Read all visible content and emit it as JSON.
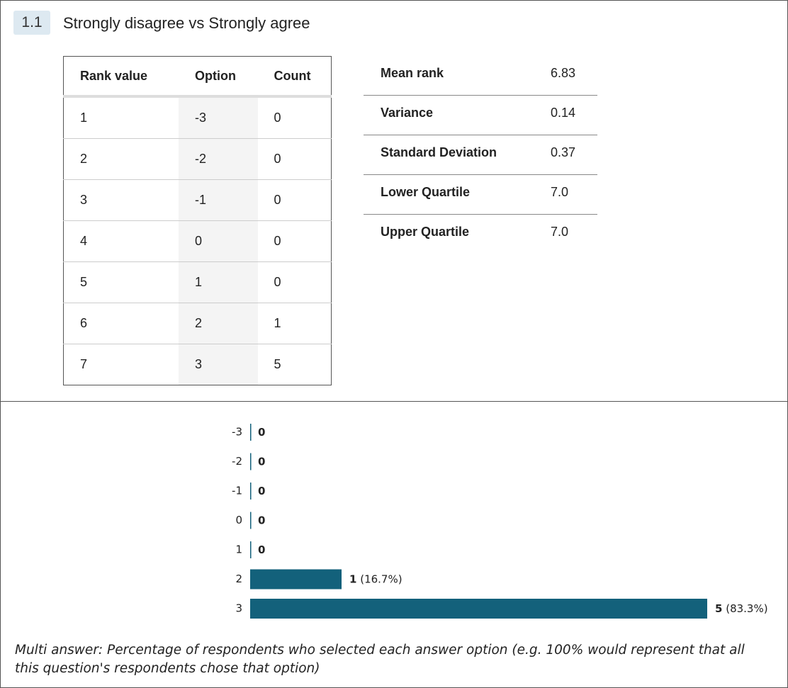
{
  "header": {
    "number": "1.1",
    "title": "Strongly disagree vs Strongly agree"
  },
  "table": {
    "columns": [
      "Rank value",
      "Option",
      "Count"
    ],
    "rows": [
      [
        "1",
        "-3",
        "0"
      ],
      [
        "2",
        "-2",
        "0"
      ],
      [
        "3",
        "-1",
        "0"
      ],
      [
        "4",
        "0",
        "0"
      ],
      [
        "5",
        "1",
        "0"
      ],
      [
        "6",
        "2",
        "1"
      ],
      [
        "7",
        "3",
        "5"
      ]
    ]
  },
  "stats": [
    [
      "Mean rank",
      "6.83"
    ],
    [
      "Variance",
      "0.14"
    ],
    [
      "Standard Deviation",
      "0.37"
    ],
    [
      "Lower Quartile",
      "7.0"
    ],
    [
      "Upper Quartile",
      "7.0"
    ]
  ],
  "chart_data": {
    "type": "bar",
    "orientation": "horizontal",
    "categories": [
      "-3",
      "-2",
      "-1",
      "0",
      "1",
      "2",
      "3"
    ],
    "values": [
      0,
      0,
      0,
      0,
      0,
      1,
      5
    ],
    "percent_labels": [
      null,
      null,
      null,
      null,
      null,
      "(16.7%)",
      "(83.3%)"
    ],
    "color": "#13617b",
    "xlim": [
      0,
      5
    ]
  },
  "note": "Multi answer: Percentage of respondents who selected each answer option (e.g. 100% would represent that all this question's respondents chose that option)"
}
